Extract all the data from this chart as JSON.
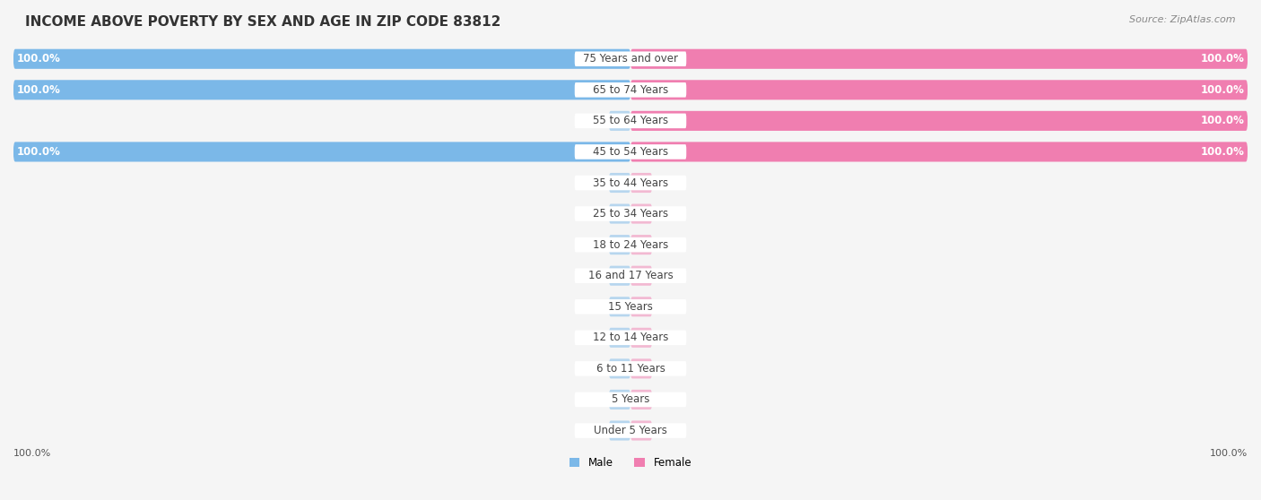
{
  "title": "INCOME ABOVE POVERTY BY SEX AND AGE IN ZIP CODE 83812",
  "source": "Source: ZipAtlas.com",
  "categories": [
    "Under 5 Years",
    "5 Years",
    "6 to 11 Years",
    "12 to 14 Years",
    "15 Years",
    "16 and 17 Years",
    "18 to 24 Years",
    "25 to 34 Years",
    "35 to 44 Years",
    "45 to 54 Years",
    "55 to 64 Years",
    "65 to 74 Years",
    "75 Years and over"
  ],
  "male_values": [
    0.0,
    0.0,
    0.0,
    0.0,
    0.0,
    0.0,
    0.0,
    0.0,
    0.0,
    100.0,
    0.0,
    100.0,
    100.0
  ],
  "female_values": [
    0.0,
    0.0,
    0.0,
    0.0,
    0.0,
    0.0,
    0.0,
    0.0,
    0.0,
    100.0,
    100.0,
    100.0,
    100.0
  ],
  "male_color": "#7BB8E8",
  "female_color": "#F07EB0",
  "male_color_full": "#6AAEE0",
  "female_color_full": "#EE6FA3",
  "bg_color": "#f5f5f5",
  "row_bg_color": "#ffffff",
  "row_alt_bg": "#f0f0f0",
  "max_value": 100.0,
  "title_fontsize": 11,
  "label_fontsize": 8.5,
  "tick_fontsize": 8,
  "source_fontsize": 8
}
